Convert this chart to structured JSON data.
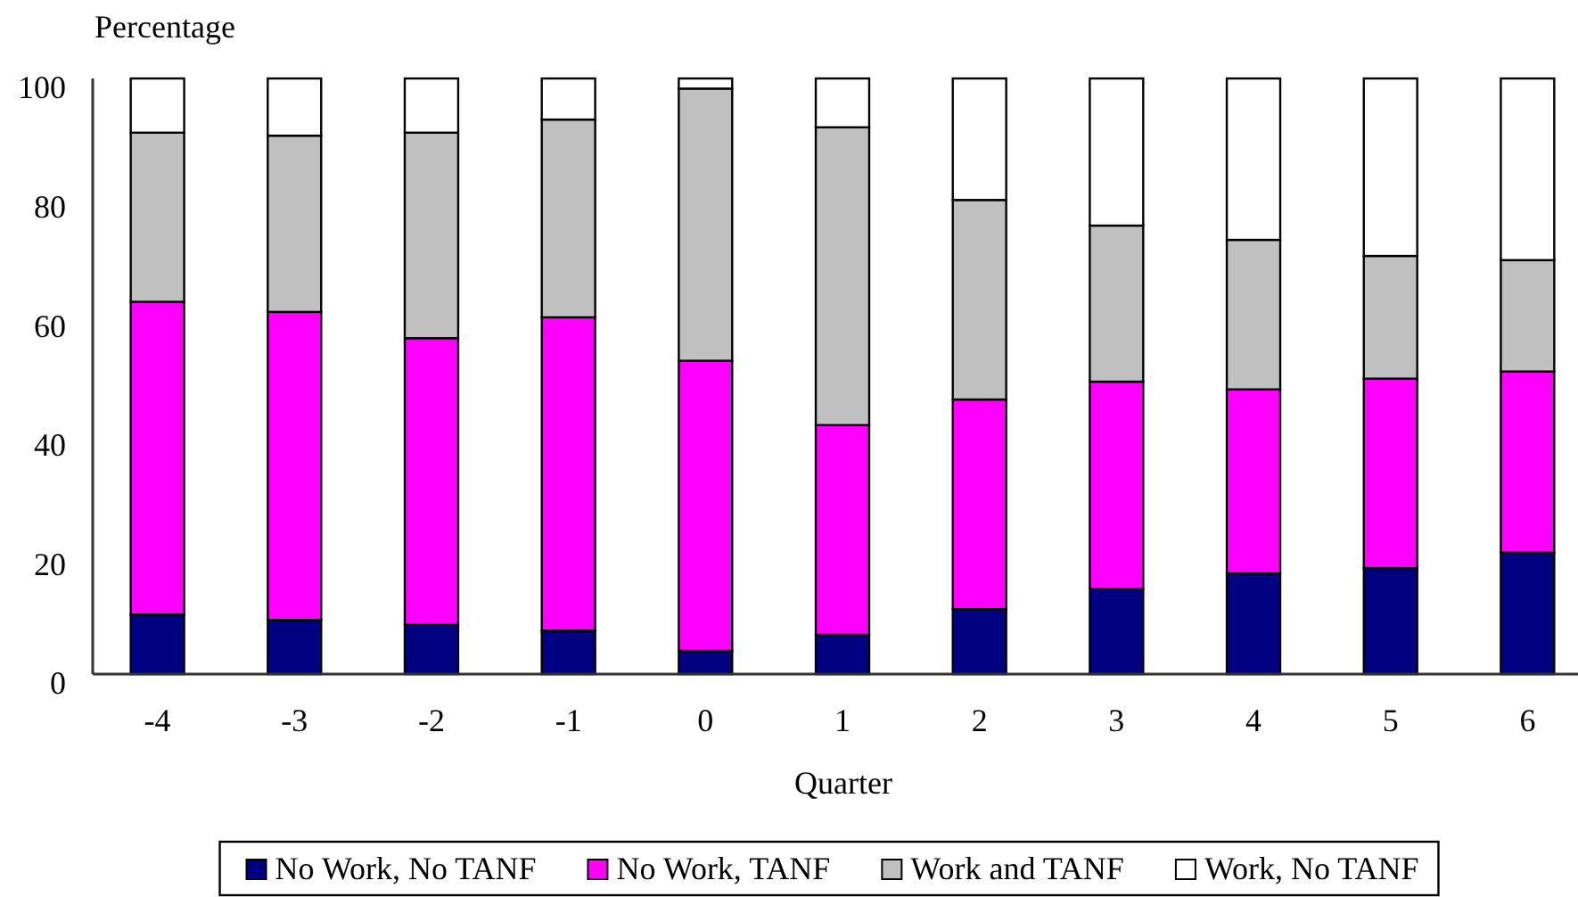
{
  "chart_data": {
    "type": "bar",
    "stacked": true,
    "ylabel": "Percentage",
    "xlabel": "Quarter",
    "categories": [
      "-4",
      "-3",
      "-2",
      "-1",
      "0",
      "1",
      "2",
      "3",
      "4",
      "5",
      "6"
    ],
    "series": [
      {
        "name": "No Work, No TANF",
        "color": "#000080",
        "values": [
          10.0,
          9.1,
          8.3,
          7.3,
          3.9,
          6.6,
          10.9,
          14.3,
          16.9,
          17.8,
          20.4
        ]
      },
      {
        "name": "No Work, TANF",
        "color": "#ff00ff",
        "values": [
          52.5,
          51.7,
          48.1,
          52.6,
          48.7,
          35.2,
          35.2,
          34.8,
          30.9,
          31.8,
          30.4
        ]
      },
      {
        "name": "Work and TANF",
        "color": "#c0c0c0",
        "values": [
          28.4,
          29.6,
          34.5,
          33.2,
          45.7,
          50.0,
          33.5,
          26.2,
          25.1,
          20.6,
          18.7
        ]
      },
      {
        "name": "Work, No TANF",
        "color": "#ffffff",
        "values": [
          9.1,
          9.6,
          9.1,
          6.9,
          1.7,
          8.2,
          20.4,
          24.7,
          27.1,
          29.8,
          30.5
        ]
      }
    ],
    "ylim": [
      0,
      100
    ],
    "yticks": [
      0,
      20,
      40,
      60,
      80,
      100
    ],
    "legend": "bottom"
  }
}
